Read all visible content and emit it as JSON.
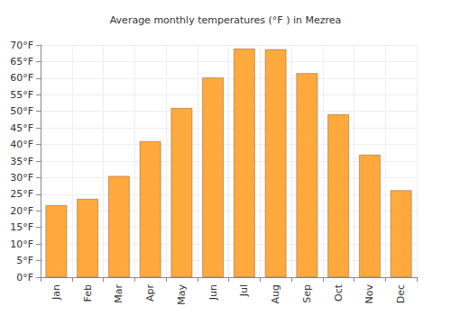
{
  "chart_data": {
    "type": "bar",
    "title": "Average monthly temperatures (°F ) in Mezrea",
    "categories": [
      "Jan",
      "Feb",
      "Mar",
      "Apr",
      "May",
      "Jun",
      "Jul",
      "Aug",
      "Sep",
      "Oct",
      "Nov",
      "Dec"
    ],
    "values": [
      21.7,
      23.6,
      30.5,
      41.0,
      51.0,
      60.2,
      68.9,
      68.7,
      61.5,
      49.1,
      36.9,
      26.2
    ],
    "color": "#ffa533",
    "ylim": [
      0,
      70
    ],
    "yticks": [
      {
        "value": 0,
        "label": "0°F"
      },
      {
        "value": 5,
        "label": "5°F"
      },
      {
        "value": 10,
        "label": "10°F"
      },
      {
        "value": 15,
        "label": "15°F"
      },
      {
        "value": 20,
        "label": "20°F"
      },
      {
        "value": 25,
        "label": "25°F"
      },
      {
        "value": 30,
        "label": "30°F"
      },
      {
        "value": 35,
        "label": "35°F"
      },
      {
        "value": 40,
        "label": "40°F"
      },
      {
        "value": 45,
        "label": "45°F"
      },
      {
        "value": 50,
        "label": "50°F"
      },
      {
        "value": 55,
        "label": "55°F"
      },
      {
        "value": 60,
        "label": "60°F"
      },
      {
        "value": 65,
        "label": "65°F"
      },
      {
        "value": 70,
        "label": "70°F"
      }
    ],
    "grid": true
  }
}
